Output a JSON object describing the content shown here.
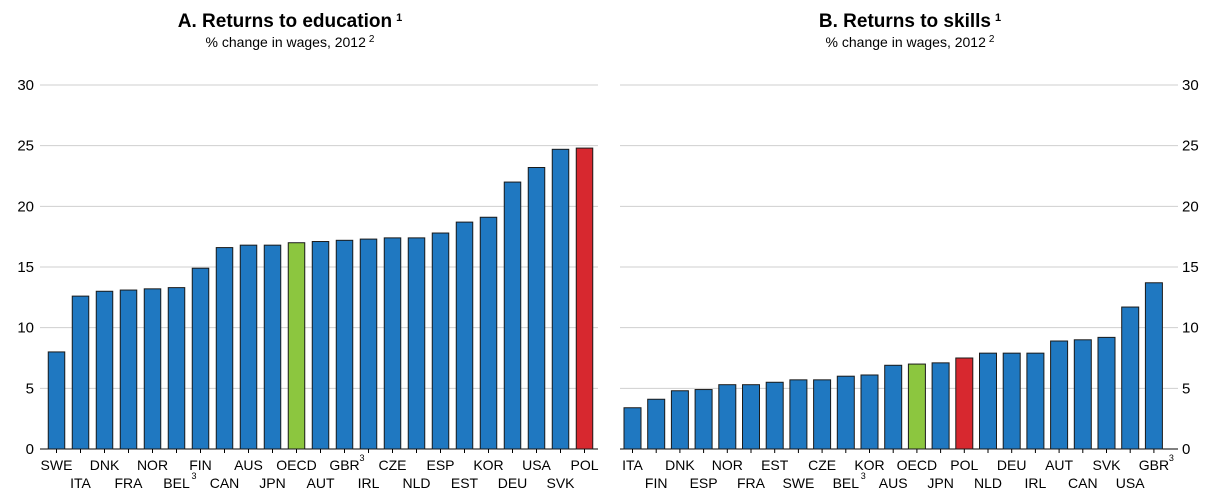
{
  "chart_data": [
    {
      "type": "bar",
      "title": "A. Returns to education",
      "title_note": "1",
      "subtitle": "% change in wages, 2012",
      "subtitle_note": "2",
      "ylim": [
        0,
        30
      ],
      "yticks": [
        0,
        5,
        10,
        15,
        20,
        25,
        30
      ],
      "grid": true,
      "axis_side": "left",
      "categories": [
        "SWE",
        "ITA",
        "DNK",
        "FRA",
        "NOR",
        "BEL",
        "FIN",
        "CAN",
        "AUS",
        "JPN",
        "OECD",
        "AUT",
        "GBR",
        "IRL",
        "CZE",
        "NLD",
        "ESP",
        "EST",
        "KOR",
        "DEU",
        "USA",
        "SVK",
        "POL"
      ],
      "category_notes": {
        "BEL": "3",
        "GBR": "3"
      },
      "values": [
        8.0,
        12.6,
        13.0,
        13.1,
        13.2,
        13.3,
        14.9,
        16.6,
        16.8,
        16.8,
        17.0,
        17.1,
        17.2,
        17.3,
        17.4,
        17.4,
        17.8,
        18.7,
        19.1,
        22.0,
        23.2,
        24.7,
        24.8
      ],
      "highlight": {
        "OECD": "#8cc63f",
        "POL": "#d7282f"
      },
      "bar_color": "#1f78c1"
    },
    {
      "type": "bar",
      "title": "B. Returns to skills",
      "title_note": "1",
      "subtitle": "% change in wages, 2012",
      "subtitle_note": "2",
      "ylim": [
        0,
        30
      ],
      "yticks": [
        0,
        5,
        10,
        15,
        20,
        25,
        30
      ],
      "grid": true,
      "axis_side": "right",
      "categories": [
        "ITA",
        "FIN",
        "DNK",
        "ESP",
        "NOR",
        "FRA",
        "EST",
        "SWE",
        "CZE",
        "BEL",
        "KOR",
        "AUS",
        "OECD",
        "JPN",
        "POL",
        "NLD",
        "DEU",
        "IRL",
        "AUT",
        "CAN",
        "SVK",
        "USA",
        "GBR"
      ],
      "category_notes": {
        "BEL": "3",
        "GBR": "3"
      },
      "values": [
        3.4,
        4.1,
        4.8,
        4.9,
        5.3,
        5.3,
        5.5,
        5.7,
        5.7,
        6.0,
        6.1,
        6.9,
        7.0,
        7.1,
        7.5,
        7.9,
        7.9,
        7.9,
        8.9,
        9.0,
        9.2,
        11.7,
        13.7
      ],
      "highlight": {
        "OECD": "#8cc63f",
        "POL": "#d7282f"
      },
      "bar_color": "#1f78c1"
    }
  ]
}
